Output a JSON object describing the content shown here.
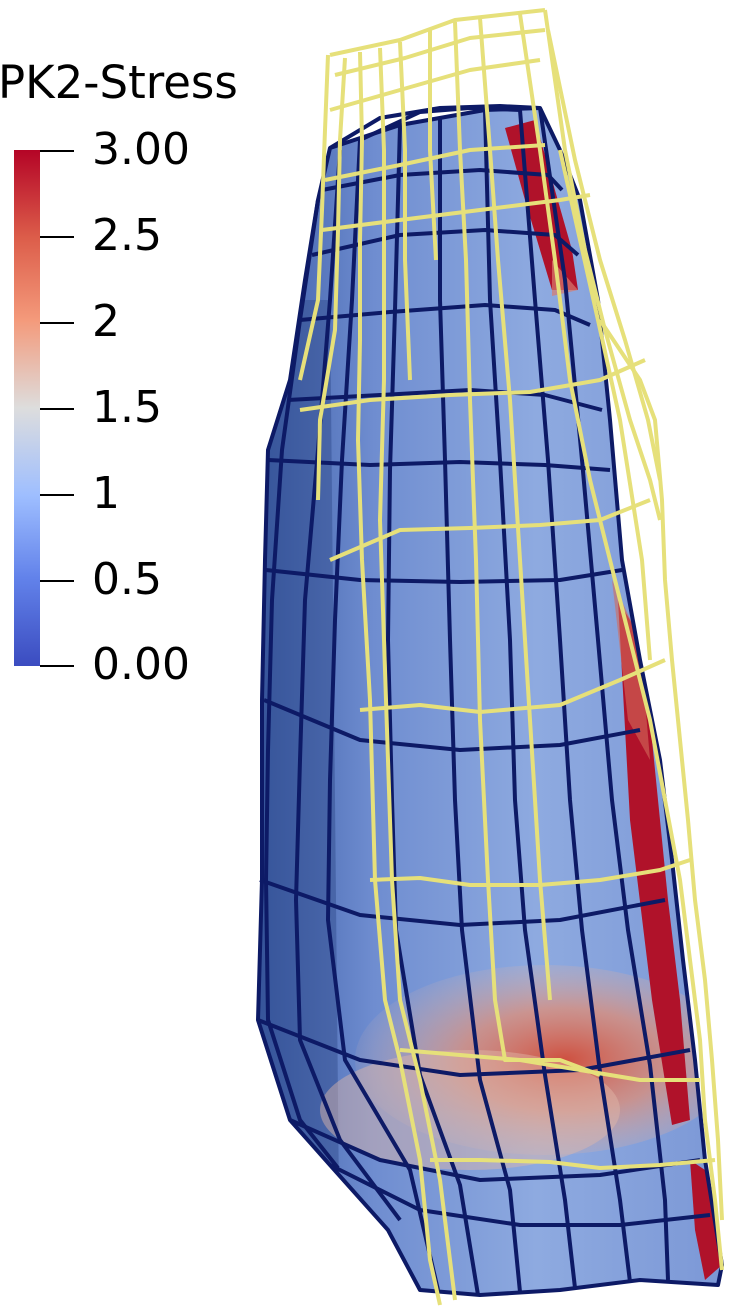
{
  "legend": {
    "title": "PK2-Stress",
    "tick_labels": [
      "3.00",
      "2.5",
      "2",
      "1.5",
      "1",
      "0.5",
      "0.00"
    ],
    "range": [
      0,
      3
    ],
    "colormap": "cool-to-warm",
    "colors": {
      "max": "#b40426",
      "mid": "#dddddd",
      "min": "#3b4cc0"
    }
  },
  "scene": {
    "surface_color": "#7f9ad4",
    "mesh_edge_color": "#0d1a66",
    "high_stress_color": "#b0122a",
    "wireframe_color": "#e6e07a"
  }
}
